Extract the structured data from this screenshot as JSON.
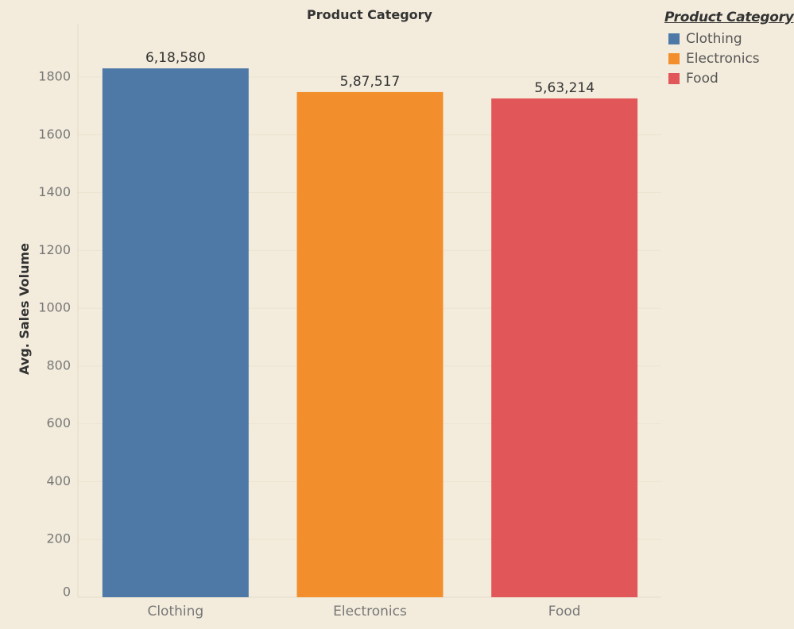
{
  "chart_data": {
    "type": "bar",
    "title": "Product Category",
    "ylabel": "Avg. Sales Volume",
    "xlabel": "",
    "categories": [
      "Clothing",
      "Electronics",
      "Food"
    ],
    "values": [
      1830,
      1748,
      1726
    ],
    "data_labels": [
      "6,18,580",
      "5,87,517",
      "5,63,214"
    ],
    "colors": [
      "#4e79a7",
      "#f28e2b",
      "#e15759"
    ],
    "yticks": [
      0,
      200,
      400,
      600,
      800,
      1000,
      1200,
      1400,
      1600,
      1800
    ],
    "ylim": [
      0,
      1860
    ],
    "grid": true,
    "legend": {
      "title": "Product Category",
      "items": [
        "Clothing",
        "Electronics",
        "Food"
      ],
      "placement": "top-right"
    }
  }
}
